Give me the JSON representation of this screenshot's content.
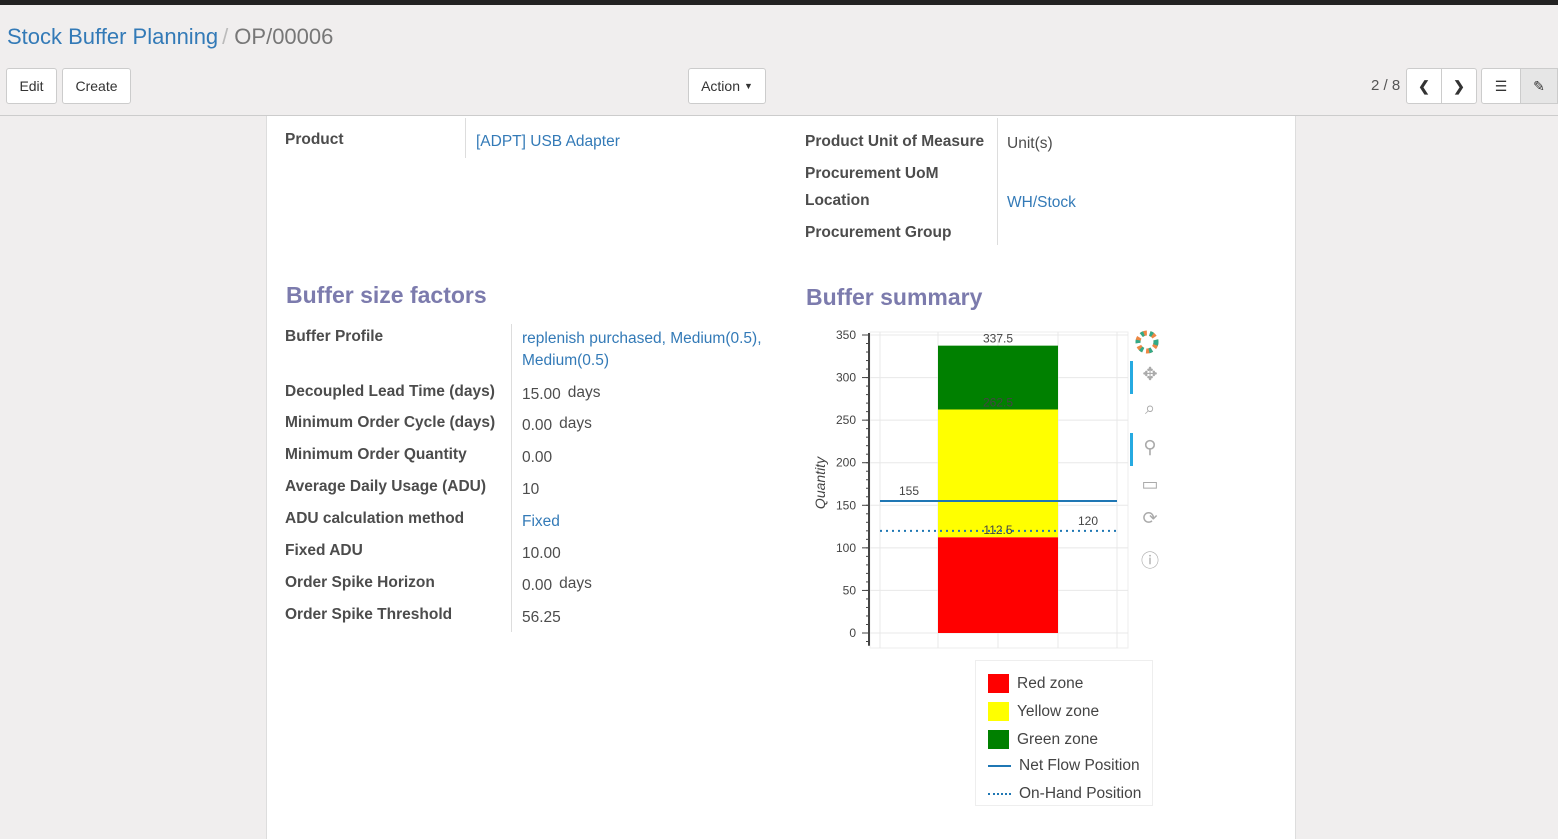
{
  "breadcrumb": {
    "parent": "Stock Buffer Planning",
    "current": "OP/00006"
  },
  "toolbar": {
    "edit": "Edit",
    "create": "Create",
    "action": "Action",
    "pager": "2 / 8"
  },
  "header_fields": {
    "product_label": "Product",
    "product_value": "[ADPT] USB Adapter",
    "uom_label": "Product Unit of Measure",
    "uom_value": "Unit(s)",
    "proc_uom_label": "Procurement UoM",
    "location_label": "Location",
    "location_value": "WH/Stock",
    "proc_group_label": "Procurement Group"
  },
  "factors": {
    "title": "Buffer size factors",
    "rows": [
      {
        "label": "Buffer Profile",
        "value": "replenish purchased, Medium(0.5), Medium(0.5)",
        "link": true
      },
      {
        "label": "Decoupled Lead Time (days)",
        "value": "15.00",
        "unit": "days"
      },
      {
        "label": "Minimum Order Cycle (days)",
        "value": "0.00",
        "unit": "days"
      },
      {
        "label": "Minimum Order Quantity",
        "value": "0.00"
      },
      {
        "label": "Average Daily Usage (ADU)",
        "value": "10"
      },
      {
        "label": "ADU calculation method",
        "value": "Fixed",
        "link": true
      },
      {
        "label": "Fixed ADU",
        "value": "10.00"
      },
      {
        "label": "Order Spike Horizon",
        "value": "0.00",
        "unit": "days"
      },
      {
        "label": "Order Spike Threshold",
        "value": "56.25"
      }
    ]
  },
  "summary": {
    "title": "Buffer summary"
  },
  "chart_data": {
    "type": "bar",
    "ylabel": "Quantity",
    "ylim": [
      0,
      350
    ],
    "yticks": [
      "0",
      "50",
      "100",
      "150",
      "200",
      "250",
      "300",
      "350"
    ],
    "grid": true,
    "legend": "bottom",
    "stacked_zones": [
      {
        "name": "Red zone",
        "from": 0,
        "to": 112.5,
        "color": "#ff0000",
        "label": "112.5"
      },
      {
        "name": "Yellow zone",
        "from": 112.5,
        "to": 262.5,
        "color": "#ffff00",
        "label": "262.5"
      },
      {
        "name": "Green zone",
        "from": 262.5,
        "to": 337.5,
        "color": "#008000",
        "label": "337.5"
      }
    ],
    "lines": [
      {
        "name": "Net Flow Position",
        "value": 155,
        "label": "155",
        "style": "solid",
        "color": "#1f77b4"
      },
      {
        "name": "On-Hand Position",
        "value": 120,
        "label": "120",
        "style": "dotted",
        "color": "#1f77b4"
      }
    ]
  }
}
